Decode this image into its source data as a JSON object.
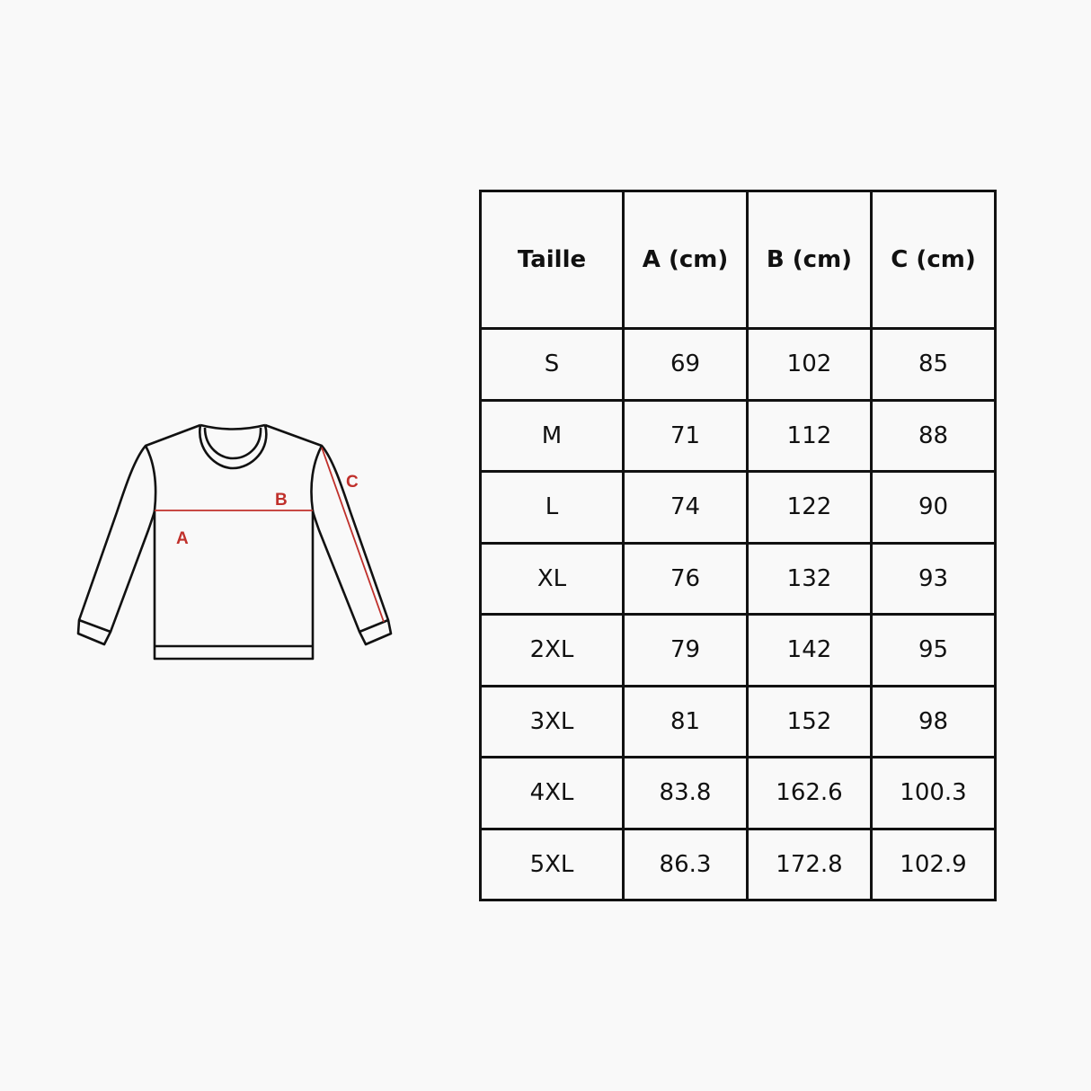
{
  "diagram": {
    "labels": {
      "a": "A",
      "b": "B",
      "c": "C"
    },
    "colors": {
      "outline": "#111111",
      "measure": "#c0302b"
    }
  },
  "table": {
    "headers": [
      "Taille",
      "A (cm)",
      "B (cm)",
      "C (cm)"
    ],
    "rows": [
      [
        "S",
        "69",
        "102",
        "85"
      ],
      [
        "M",
        "71",
        "112",
        "88"
      ],
      [
        "L",
        "74",
        "122",
        "90"
      ],
      [
        "XL",
        "76",
        "132",
        "93"
      ],
      [
        "2XL",
        "79",
        "142",
        "95"
      ],
      [
        "3XL",
        "81",
        "152",
        "98"
      ],
      [
        "4XL",
        "83.8",
        "162.6",
        "100.3"
      ],
      [
        "5XL",
        "86.3",
        "172.8",
        "102.9"
      ]
    ]
  }
}
